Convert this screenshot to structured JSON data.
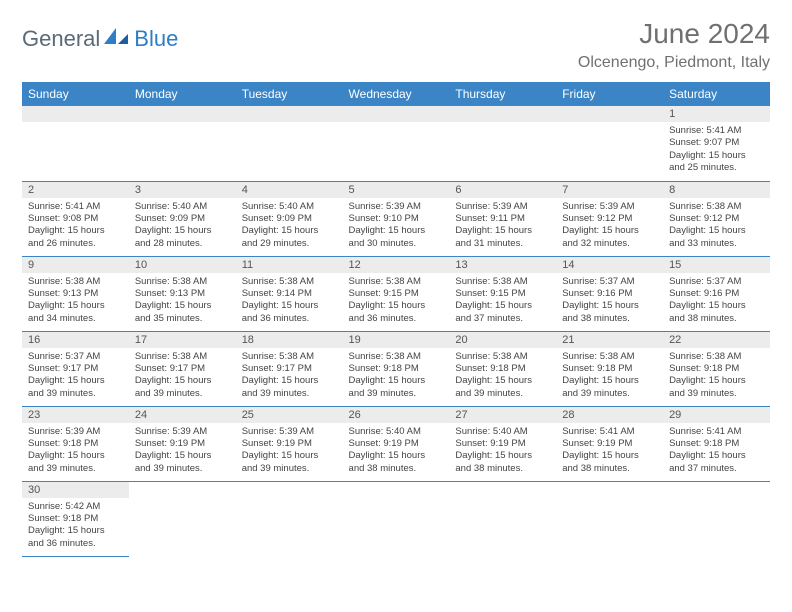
{
  "logo": {
    "general": "General",
    "blue": "Blue"
  },
  "header": {
    "title": "June 2024",
    "location": "Olcenengo, Piedmont, Italy"
  },
  "columns": [
    "Sunday",
    "Monday",
    "Tuesday",
    "Wednesday",
    "Thursday",
    "Friday",
    "Saturday"
  ],
  "colors": {
    "header_bg": "#3b85c6",
    "header_fg": "#ffffff",
    "daynum_bg": "#ececec",
    "border": "#3b85c6",
    "title_color": "#707070",
    "logo_general": "#5a6a78",
    "logo_blue": "#2d7dc7"
  },
  "weeks": [
    [
      null,
      null,
      null,
      null,
      null,
      null,
      {
        "n": "1",
        "sr": "5:41 AM",
        "ss": "9:07 PM",
        "dl": "15 hours and 25 minutes."
      }
    ],
    [
      {
        "n": "2",
        "sr": "5:41 AM",
        "ss": "9:08 PM",
        "dl": "15 hours and 26 minutes."
      },
      {
        "n": "3",
        "sr": "5:40 AM",
        "ss": "9:09 PM",
        "dl": "15 hours and 28 minutes."
      },
      {
        "n": "4",
        "sr": "5:40 AM",
        "ss": "9:09 PM",
        "dl": "15 hours and 29 minutes."
      },
      {
        "n": "5",
        "sr": "5:39 AM",
        "ss": "9:10 PM",
        "dl": "15 hours and 30 minutes."
      },
      {
        "n": "6",
        "sr": "5:39 AM",
        "ss": "9:11 PM",
        "dl": "15 hours and 31 minutes."
      },
      {
        "n": "7",
        "sr": "5:39 AM",
        "ss": "9:12 PM",
        "dl": "15 hours and 32 minutes."
      },
      {
        "n": "8",
        "sr": "5:38 AM",
        "ss": "9:12 PM",
        "dl": "15 hours and 33 minutes."
      }
    ],
    [
      {
        "n": "9",
        "sr": "5:38 AM",
        "ss": "9:13 PM",
        "dl": "15 hours and 34 minutes."
      },
      {
        "n": "10",
        "sr": "5:38 AM",
        "ss": "9:13 PM",
        "dl": "15 hours and 35 minutes."
      },
      {
        "n": "11",
        "sr": "5:38 AM",
        "ss": "9:14 PM",
        "dl": "15 hours and 36 minutes."
      },
      {
        "n": "12",
        "sr": "5:38 AM",
        "ss": "9:15 PM",
        "dl": "15 hours and 36 minutes."
      },
      {
        "n": "13",
        "sr": "5:38 AM",
        "ss": "9:15 PM",
        "dl": "15 hours and 37 minutes."
      },
      {
        "n": "14",
        "sr": "5:37 AM",
        "ss": "9:16 PM",
        "dl": "15 hours and 38 minutes."
      },
      {
        "n": "15",
        "sr": "5:37 AM",
        "ss": "9:16 PM",
        "dl": "15 hours and 38 minutes."
      }
    ],
    [
      {
        "n": "16",
        "sr": "5:37 AM",
        "ss": "9:17 PM",
        "dl": "15 hours and 39 minutes."
      },
      {
        "n": "17",
        "sr": "5:38 AM",
        "ss": "9:17 PM",
        "dl": "15 hours and 39 minutes."
      },
      {
        "n": "18",
        "sr": "5:38 AM",
        "ss": "9:17 PM",
        "dl": "15 hours and 39 minutes."
      },
      {
        "n": "19",
        "sr": "5:38 AM",
        "ss": "9:18 PM",
        "dl": "15 hours and 39 minutes."
      },
      {
        "n": "20",
        "sr": "5:38 AM",
        "ss": "9:18 PM",
        "dl": "15 hours and 39 minutes."
      },
      {
        "n": "21",
        "sr": "5:38 AM",
        "ss": "9:18 PM",
        "dl": "15 hours and 39 minutes."
      },
      {
        "n": "22",
        "sr": "5:38 AM",
        "ss": "9:18 PM",
        "dl": "15 hours and 39 minutes."
      }
    ],
    [
      {
        "n": "23",
        "sr": "5:39 AM",
        "ss": "9:18 PM",
        "dl": "15 hours and 39 minutes."
      },
      {
        "n": "24",
        "sr": "5:39 AM",
        "ss": "9:19 PM",
        "dl": "15 hours and 39 minutes."
      },
      {
        "n": "25",
        "sr": "5:39 AM",
        "ss": "9:19 PM",
        "dl": "15 hours and 39 minutes."
      },
      {
        "n": "26",
        "sr": "5:40 AM",
        "ss": "9:19 PM",
        "dl": "15 hours and 38 minutes."
      },
      {
        "n": "27",
        "sr": "5:40 AM",
        "ss": "9:19 PM",
        "dl": "15 hours and 38 minutes."
      },
      {
        "n": "28",
        "sr": "5:41 AM",
        "ss": "9:19 PM",
        "dl": "15 hours and 38 minutes."
      },
      {
        "n": "29",
        "sr": "5:41 AM",
        "ss": "9:18 PM",
        "dl": "15 hours and 37 minutes."
      }
    ],
    [
      {
        "n": "30",
        "sr": "5:42 AM",
        "ss": "9:18 PM",
        "dl": "15 hours and 36 minutes."
      },
      null,
      null,
      null,
      null,
      null,
      null
    ]
  ],
  "labels": {
    "sunrise": "Sunrise: ",
    "sunset": "Sunset: ",
    "daylight": "Daylight: "
  }
}
